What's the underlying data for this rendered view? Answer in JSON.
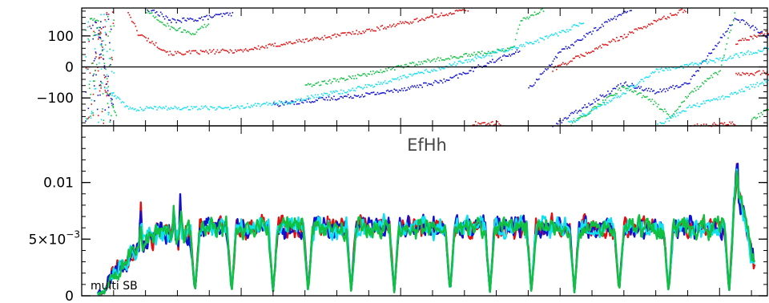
{
  "chart_data": [
    {
      "type": "scatter",
      "title": "",
      "xlabel": "",
      "ylabel": "",
      "ylim": [
        -190,
        190
      ],
      "yticks": [
        {
          "value": 100,
          "label": "100"
        },
        {
          "value": 0,
          "label": "0"
        },
        {
          "value": -100,
          "label": "−100"
        }
      ],
      "zero_line": true,
      "series": [
        {
          "color": "#e01010",
          "segments": [
            [
              [
                0.1,
                95
              ],
              [
                0.12,
                120
              ],
              [
                0.14,
                -60
              ],
              [
                0.16,
                -100
              ]
            ],
            [
              [
                0.28,
                190
              ],
              [
                0.35,
                110
              ],
              [
                0.55,
                45
              ],
              [
                1.0,
                55
              ],
              [
                1.8,
                120
              ],
              [
                2.3,
                175
              ],
              [
                2.45,
                190
              ]
            ],
            [
              [
                2.45,
                -180
              ],
              [
                2.63,
                -180
              ]
            ],
            [
              [
                2.95,
                -5
              ],
              [
                3.6,
                150
              ],
              [
                3.8,
                190
              ]
            ],
            [
              [
                3.8,
                -190
              ],
              [
                4.1,
                -180
              ]
            ],
            [
              [
                4.1,
                80
              ],
              [
                4.4,
                130
              ],
              [
                4.7,
                170
              ]
            ],
            [
              [
                4.1,
                -20
              ],
              [
                4.4,
                -15
              ],
              [
                4.7,
                -55
              ],
              [
                4.75,
                -130
              ],
              [
                4.8,
                -175
              ]
            ]
          ]
        },
        {
          "color": "#1010d0",
          "segments": [
            [
              [
                0.08,
                150
              ],
              [
                0.12,
                80
              ],
              [
                0.16,
                -80
              ],
              [
                0.2,
                -120
              ]
            ],
            [
              [
                0.4,
                190
              ],
              [
                0.5,
                170
              ],
              [
                0.55,
                150
              ],
              [
                0.7,
                155
              ],
              [
                0.95,
                175
              ]
            ],
            [
              [
                1.2,
                -120
              ],
              [
                1.9,
                -80
              ],
              [
                2.3,
                -40
              ],
              [
                2.5,
                5
              ],
              [
                2.75,
                55
              ]
            ],
            [
              [
                2.8,
                -70
              ],
              [
                3.0,
                50
              ],
              [
                3.3,
                150
              ],
              [
                3.45,
                190
              ]
            ],
            [
              [
                2.95,
                -190
              ],
              [
                3.2,
                -110
              ],
              [
                3.4,
                -50
              ],
              [
                3.6,
                -80
              ],
              [
                3.8,
                -50
              ],
              [
                4.1,
                160
              ],
              [
                4.4,
                70
              ],
              [
                4.55,
                -5
              ],
              [
                4.8,
                -130
              ]
            ]
          ]
        },
        {
          "color": "#10c040",
          "segments": [
            [
              [
                0.05,
                160
              ],
              [
                0.1,
                150
              ],
              [
                0.13,
                40
              ],
              [
                0.18,
                -110
              ],
              [
                0.22,
                -170
              ]
            ],
            [
              [
                0.38,
                190
              ],
              [
                0.55,
                130
              ],
              [
                0.7,
                110
              ],
              [
                0.8,
                145
              ]
            ],
            [
              [
                1.4,
                -60
              ],
              [
                1.8,
                -20
              ],
              [
                2.15,
                20
              ],
              [
                2.7,
                60
              ],
              [
                2.75,
                150
              ],
              [
                2.9,
                190
              ]
            ],
            [
              [
                3.05,
                -190
              ],
              [
                3.4,
                -60
              ],
              [
                3.55,
                -100
              ],
              [
                3.7,
                -160
              ]
            ],
            [
              [
                3.7,
                -150
              ],
              [
                3.8,
                -90
              ],
              [
                4.0,
                -10
              ],
              [
                4.1,
                190
              ]
            ],
            [
              [
                4.2,
                -170
              ],
              [
                4.5,
                -60
              ],
              [
                4.7,
                -60
              ],
              [
                4.78,
                -110
              ]
            ]
          ]
        },
        {
          "color": "#10e0f0",
          "segments": [
            [
              [
                0.18,
                -80
              ],
              [
                0.22,
                -100
              ],
              [
                0.3,
                -135
              ],
              [
                0.5,
                -130
              ],
              [
                0.9,
                -130
              ],
              [
                1.3,
                -110
              ],
              [
                1.8,
                -60
              ],
              [
                2.1,
                -20
              ],
              [
                2.4,
                20
              ],
              [
                2.75,
                70
              ],
              [
                3.0,
                110
              ],
              [
                3.15,
                150
              ]
            ],
            [
              [
                3.05,
                -180
              ],
              [
                3.4,
                -80
              ],
              [
                3.6,
                -10
              ],
              [
                4.0,
                25
              ],
              [
                4.2,
                50
              ],
              [
                4.4,
                70
              ],
              [
                4.5,
                80
              ],
              [
                4.65,
                60
              ]
            ],
            [
              [
                3.6,
                -190
              ],
              [
                3.8,
                -130
              ],
              [
                4.0,
                -100
              ],
              [
                4.2,
                -60
              ],
              [
                4.4,
                -30
              ],
              [
                4.6,
                -60
              ],
              [
                4.65,
                -100
              ]
            ]
          ]
        }
      ]
    },
    {
      "type": "line",
      "title": "EfHh",
      "xlabel": "",
      "ylabel": "",
      "ylim": [
        0,
        0.015
      ],
      "yticks": [
        {
          "value": 0.01,
          "label": "0.01"
        },
        {
          "value": 0.005,
          "label": "5×10",
          "superscript": "−3"
        },
        {
          "value": 0,
          "label": "0"
        }
      ],
      "annotations": [
        {
          "text": "multi SB"
        }
      ],
      "envelope": [
        [
          0.0,
          0.0002
        ],
        [
          0.14,
          0.0004
        ],
        [
          0.2,
          0.0022
        ],
        [
          0.3,
          0.0035
        ],
        [
          0.4,
          0.0048
        ],
        [
          0.5,
          0.0058
        ],
        [
          0.6,
          0.005
        ],
        [
          0.7,
          0.0058
        ],
        [
          0.8,
          0.006
        ],
        [
          1.0,
          0.006
        ],
        [
          1.5,
          0.0061
        ],
        [
          2.0,
          0.006
        ],
        [
          2.5,
          0.006
        ],
        [
          3.0,
          0.0061
        ],
        [
          3.5,
          0.006
        ],
        [
          3.95,
          0.006
        ],
        [
          4.05,
          0.006
        ],
        [
          4.1,
          0.0093
        ],
        [
          4.15,
          0.0075
        ],
        [
          4.2,
          0.004
        ],
        [
          4.23,
          0.0022
        ],
        [
          4.26,
          0.0008
        ],
        [
          4.3,
          0.0002
        ]
      ],
      "dips": [
        0.71,
        0.94,
        1.2,
        1.42,
        1.69,
        1.96,
        2.31,
        2.56,
        2.82,
        3.09,
        3.37,
        3.68,
        4.06
      ],
      "spikes": [
        [
          0.05,
          0.003
        ],
        [
          0.37,
          0.0034
        ],
        [
          0.58,
          0.0028
        ],
        [
          0.62,
          0.0036
        ],
        [
          4.11,
          0.0033
        ]
      ],
      "series": [
        {
          "color": "#e01010",
          "seed": 11
        },
        {
          "color": "#1010d0",
          "seed": 23
        },
        {
          "color": "#10e0f0",
          "seed": 37
        },
        {
          "color": "#10c040",
          "seed": 53
        }
      ]
    }
  ]
}
